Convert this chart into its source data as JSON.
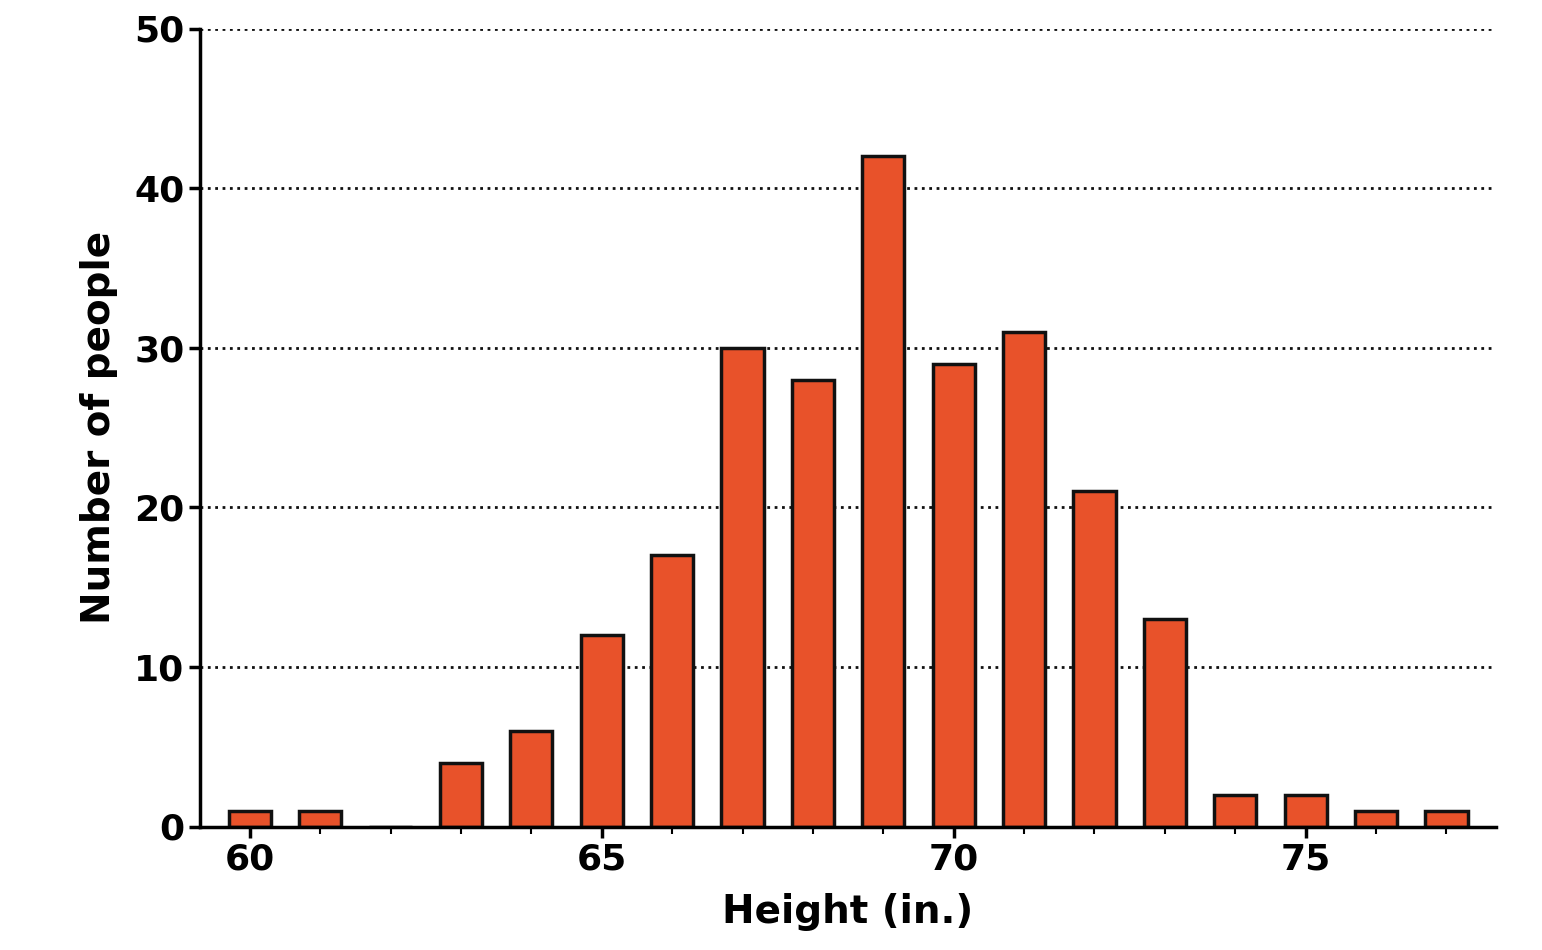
{
  "heights": [
    60,
    61,
    62,
    63,
    64,
    65,
    66,
    67,
    68,
    69,
    70,
    71,
    72,
    73,
    74,
    75,
    76,
    77
  ],
  "values": [
    1,
    1,
    0,
    4,
    6,
    12,
    17,
    30,
    28,
    42,
    29,
    31,
    21,
    13,
    2,
    2,
    1,
    1
  ],
  "bar_color": "#E8522A",
  "bar_edgecolor": "#111111",
  "bar_linewidth": 2.5,
  "bar_width": 0.6,
  "xlabel": "Height (in.)",
  "ylabel": "Number of people",
  "xlabel_fontsize": 28,
  "ylabel_fontsize": 28,
  "tick_fontsize": 26,
  "ylim": [
    0,
    50
  ],
  "yticks": [
    0,
    10,
    20,
    30,
    40,
    50
  ],
  "xticks_major": [
    60,
    65,
    70,
    75
  ],
  "grid_color": "#111111",
  "grid_linestyle": "dotted",
  "grid_linewidth": 2.0,
  "background_color": "#ffffff",
  "xlabel_fontweight": "bold",
  "ylabel_fontweight": "bold",
  "tick_fontweight": "bold",
  "spine_linewidth": 2.5
}
